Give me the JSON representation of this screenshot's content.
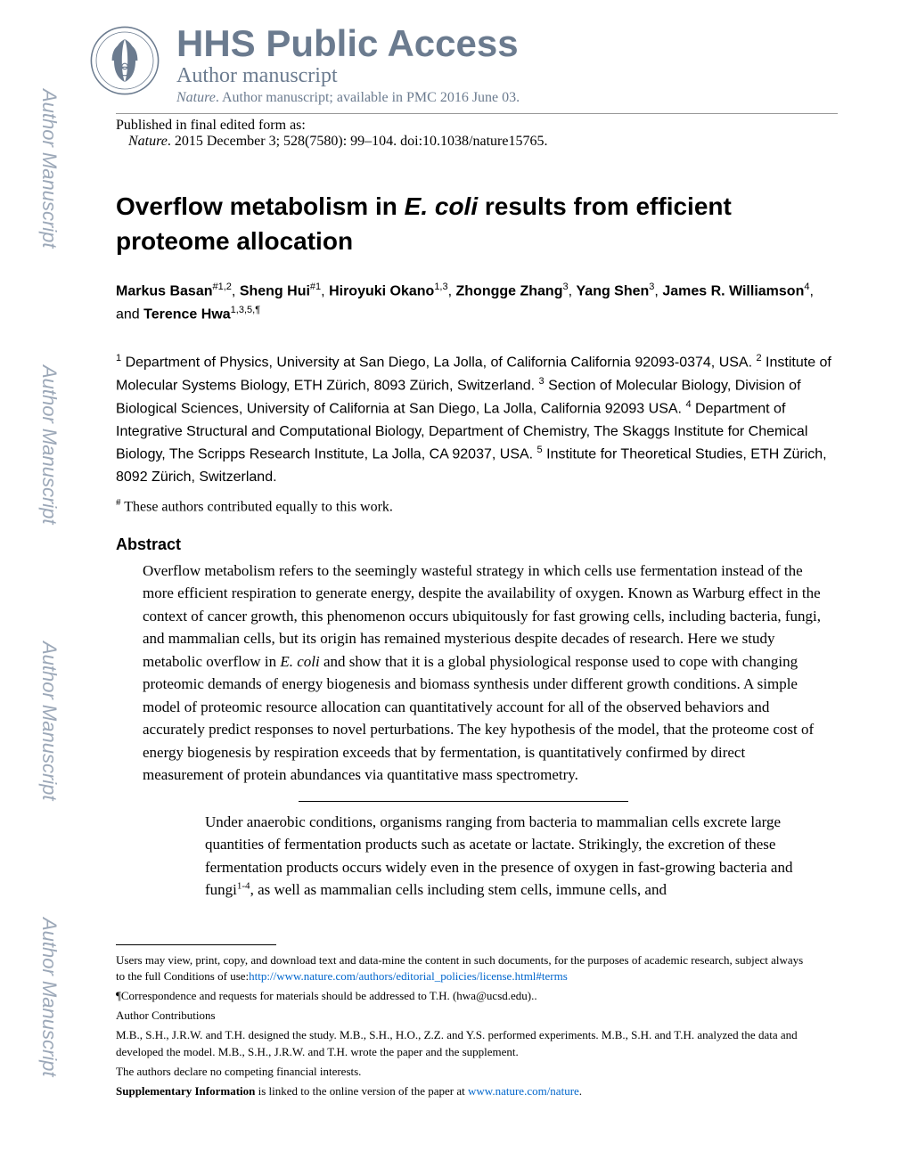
{
  "sidebar": {
    "label": "Author Manuscript"
  },
  "header": {
    "main": "HHS Public Access",
    "sub": "Author manuscript",
    "journal_italic": "Nature",
    "journal_rest": ". Author manuscript; available in PMC 2016 June 03."
  },
  "publication": {
    "intro": "Published in final edited form as:",
    "citation_italic": "Nature",
    "citation_rest": ". 2015 December 3; 528(7580): 99–104. doi:10.1038/nature15765."
  },
  "title": {
    "part1": "Overflow metabolism in ",
    "italic": "E. coli",
    "part2": " results from efficient proteome allocation"
  },
  "authors_html": "<b>Markus Basan</b><sup>#1,2</sup>, <b>Sheng Hui</b><sup>#1</sup>, <b>Hiroyuki Okano</b><sup>1,3</sup>, <b>Zhongge Zhang</b><sup>3</sup>, <b>Yang Shen</b><sup>3</sup>, <b>James R. Williamson</b><sup>4</sup>, and <b>Terence Hwa</b><sup>1,3,5,¶</sup>",
  "affiliations_html": "<sup>1</sup> Department of Physics, University at San Diego, La Jolla, of California California 92093-0374, USA. <sup>2</sup> Institute of Molecular Systems Biology, ETH Zürich, 8093 Zürich, Switzerland. <sup>3</sup> Section of Molecular Biology, Division of Biological Sciences, University of California at San Diego, La Jolla, California 92093 USA. <sup>4</sup> Department of Integrative Structural and Computational Biology, Department of Chemistry, The Skaggs Institute for Chemical Biology, The Scripps Research Institute, La Jolla, CA 92037, USA. <sup>5</sup> Institute for Theoretical Studies, ETH Zürich, 8092 Zürich, Switzerland.",
  "equal_contrib_sup": "#",
  "equal_contrib_text": " These authors contributed equally to this work.",
  "abstract": {
    "heading": "Abstract",
    "text_html": "Overflow metabolism refers to the seemingly wasteful strategy in which cells use fermentation instead of the more efficient respiration to generate energy, despite the availability of oxygen. Known as Warburg effect in the context of cancer growth, this phenomenon occurs ubiquitously for fast growing cells, including bacteria, fungi, and mammalian cells, but its origin has remained mysterious despite decades of research. Here we study metabolic overflow in <span class=\"italic\">E. coli</span> and show that it is a global physiological response used to cope with changing proteomic demands of energy biogenesis and biomass synthesis under different growth conditions. A simple model of proteomic resource allocation can quantitatively account for all of the observed behaviors and accurately predict responses to novel perturbations. The key hypothesis of the model, that the proteome cost of energy biogenesis by respiration exceeds that by fermentation, is quantitatively confirmed by direct measurement of protein abundances via quantitative mass spectrometry."
  },
  "body_html": "Under anaerobic conditions, organisms ranging from bacteria to mammalian cells excrete large quantities of fermentation products such as acetate or lactate. Strikingly, the excretion of these fermentation products occurs widely even in the presence of oxygen in fast-growing bacteria and fungi<sup>1-4</sup>, as well as mammalian cells including stem cells, immune cells, and",
  "footnotes": {
    "users_text": "Users may view, print, copy, and download text and data-mine the content in such documents, for the purposes of academic research, subject always to the full Conditions of use:",
    "users_link": "http://www.nature.com/authors/editorial_policies/license.html#terms",
    "correspondence": "¶Correspondence and requests for materials should be addressed to T.H. (hwa@ucsd.edu)..",
    "author_contrib_heading": "Author Contributions",
    "author_contrib_text": "M.B., S.H., J.R.W. and T.H. designed the study. M.B., S.H., H.O., Z.Z. and Y.S. performed experiments. M.B., S.H. and T.H. analyzed the data and developed the model. M.B., S.H., J.R.W. and T.H. wrote the paper and the supplement.",
    "competing": "The authors declare no competing financial interests.",
    "supp_bold": "Supplementary Information",
    "supp_rest": " is linked to the online version of the paper at ",
    "supp_link": "www.nature.com/nature",
    "supp_end": "."
  },
  "colors": {
    "sidebar_text": "#9ca8b8",
    "header_text": "#6b7b8f",
    "link": "#0066cc",
    "body": "#000000",
    "background": "#ffffff"
  }
}
